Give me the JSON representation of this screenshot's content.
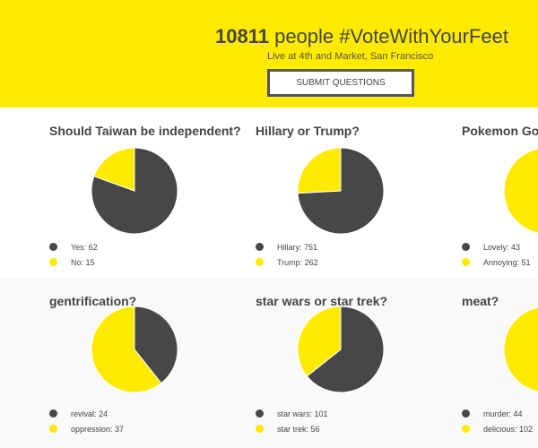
{
  "header": {
    "count": "10811",
    "title_rest": " people #VoteWithYourFeet",
    "subtitle": "Live at 4th and Market, San Francisco",
    "submit_label": "SUBMIT QUESTIONS"
  },
  "colors": {
    "dark": "#474747",
    "yellow": "#ffea00"
  },
  "polls": [
    {
      "question": "Should Taiwan be independent?",
      "options": [
        {
          "label": "Yes: 62",
          "value": 62
        },
        {
          "label": "No: 15",
          "value": 15
        }
      ]
    },
    {
      "question": "Hillary or Trump?",
      "options": [
        {
          "label": "Hillary: 751",
          "value": 751
        },
        {
          "label": "Trump: 262",
          "value": 262
        }
      ]
    },
    {
      "question": "Pokemon Go?",
      "options": [
        {
          "label": "Lovely: 43",
          "value": 43
        },
        {
          "label": "Annoying: 51",
          "value": 51
        }
      ]
    },
    {
      "question": "gentrification?",
      "options": [
        {
          "label": "revival: 24",
          "value": 24
        },
        {
          "label": "oppression: 37",
          "value": 37
        }
      ]
    },
    {
      "question": "star wars or star trek?",
      "options": [
        {
          "label": "star wars: 101",
          "value": 101
        },
        {
          "label": "star trek: 56",
          "value": 56
        }
      ]
    },
    {
      "question": "meat?",
      "options": [
        {
          "label": "murder: 44",
          "value": 44
        },
        {
          "label": "delicious: 102",
          "value": 102
        }
      ]
    }
  ]
}
